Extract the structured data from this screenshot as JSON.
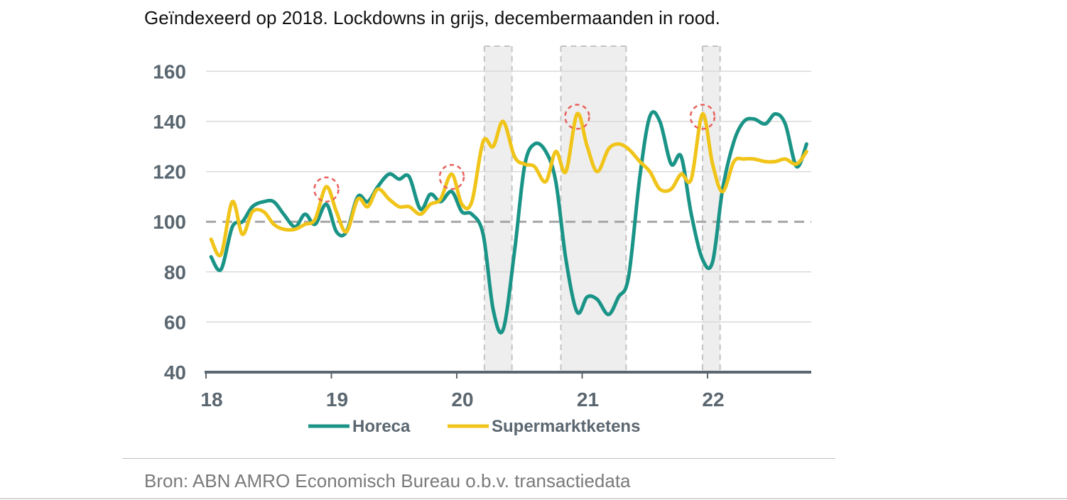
{
  "subtitle": "Geïndexeerd op 2018. Lockdowns in grijs, decembermaanden in rood.",
  "source": "Bron: ABN AMRO Economisch Bureau o.b.v. transactiedata",
  "colors": {
    "horeca": "#1a9487",
    "supermarkt": "#f0c419",
    "lockdown": "#eeeeee",
    "december_marker": "#e8605c",
    "baseline": "#a6a6a6",
    "axis": "#5b6770"
  },
  "chart_data": {
    "type": "line",
    "title": "",
    "xlabel": "",
    "ylabel": "",
    "xlim": [
      2018.0,
      2022.85
    ],
    "ylim": [
      40,
      170
    ],
    "y_ticks": [
      40,
      60,
      80,
      100,
      120,
      140,
      160
    ],
    "x_ticks": [
      {
        "value": 2018,
        "label": "18"
      },
      {
        "value": 2019,
        "label": "19"
      },
      {
        "value": 2020,
        "label": "20"
      },
      {
        "value": 2021,
        "label": "21"
      },
      {
        "value": 2022,
        "label": "22"
      }
    ],
    "grid": "horizontal",
    "reference_line": {
      "y": 100,
      "style": "dashed"
    },
    "legend_position": "bottom",
    "lockdowns": [
      {
        "start": 2020.22,
        "end": 2020.44
      },
      {
        "start": 2020.83,
        "end": 2021.35
      },
      {
        "start": 2021.96,
        "end": 2022.1
      }
    ],
    "december_markers": [
      {
        "x": 2018.96,
        "y": 114
      },
      {
        "x": 2019.96,
        "y": 119
      },
      {
        "x": 2020.96,
        "y": 143
      },
      {
        "x": 2021.96,
        "y": 143
      }
    ],
    "series": [
      {
        "name": "Horeca",
        "color_key": "horeca",
        "points": [
          [
            2018.04,
            86
          ],
          [
            2018.12,
            81
          ],
          [
            2018.21,
            98
          ],
          [
            2018.29,
            100
          ],
          [
            2018.37,
            106
          ],
          [
            2018.46,
            108
          ],
          [
            2018.54,
            108
          ],
          [
            2018.62,
            103
          ],
          [
            2018.71,
            98
          ],
          [
            2018.79,
            103
          ],
          [
            2018.87,
            99
          ],
          [
            2018.96,
            107
          ],
          [
            2019.04,
            96
          ],
          [
            2019.12,
            96
          ],
          [
            2019.21,
            110
          ],
          [
            2019.29,
            108
          ],
          [
            2019.37,
            114
          ],
          [
            2019.46,
            119
          ],
          [
            2019.54,
            117
          ],
          [
            2019.62,
            118
          ],
          [
            2019.71,
            105
          ],
          [
            2019.79,
            111
          ],
          [
            2019.87,
            108
          ],
          [
            2019.96,
            112
          ],
          [
            2020.04,
            104
          ],
          [
            2020.12,
            103
          ],
          [
            2020.21,
            95
          ],
          [
            2020.29,
            65
          ],
          [
            2020.37,
            57
          ],
          [
            2020.46,
            88
          ],
          [
            2020.54,
            122
          ],
          [
            2020.62,
            131
          ],
          [
            2020.71,
            128
          ],
          [
            2020.79,
            116
          ],
          [
            2020.87,
            85
          ],
          [
            2020.96,
            64
          ],
          [
            2021.04,
            70
          ],
          [
            2021.12,
            69
          ],
          [
            2021.21,
            63
          ],
          [
            2021.29,
            70
          ],
          [
            2021.37,
            78
          ],
          [
            2021.46,
            118
          ],
          [
            2021.54,
            142
          ],
          [
            2021.62,
            140
          ],
          [
            2021.71,
            123
          ],
          [
            2021.79,
            126
          ],
          [
            2021.87,
            103
          ],
          [
            2021.96,
            85
          ],
          [
            2022.04,
            84
          ],
          [
            2022.12,
            113
          ],
          [
            2022.21,
            132
          ],
          [
            2022.29,
            140
          ],
          [
            2022.37,
            141
          ],
          [
            2022.46,
            139
          ],
          [
            2022.54,
            143
          ],
          [
            2022.62,
            139
          ],
          [
            2022.71,
            122
          ],
          [
            2022.79,
            131
          ]
        ]
      },
      {
        "name": "Supermarktketens",
        "color_key": "supermarkt",
        "points": [
          [
            2018.04,
            93
          ],
          [
            2018.12,
            87
          ],
          [
            2018.21,
            108
          ],
          [
            2018.29,
            95
          ],
          [
            2018.37,
            104
          ],
          [
            2018.46,
            104
          ],
          [
            2018.54,
            99
          ],
          [
            2018.62,
            97
          ],
          [
            2018.71,
            97
          ],
          [
            2018.79,
            99
          ],
          [
            2018.87,
            101
          ],
          [
            2018.96,
            114
          ],
          [
            2019.04,
            104
          ],
          [
            2019.12,
            96
          ],
          [
            2019.21,
            109
          ],
          [
            2019.29,
            106
          ],
          [
            2019.37,
            113
          ],
          [
            2019.46,
            109
          ],
          [
            2019.54,
            106
          ],
          [
            2019.62,
            106
          ],
          [
            2019.71,
            103
          ],
          [
            2019.79,
            107
          ],
          [
            2019.87,
            109
          ],
          [
            2019.96,
            119
          ],
          [
            2020.04,
            107
          ],
          [
            2020.12,
            108
          ],
          [
            2020.21,
            132
          ],
          [
            2020.29,
            130
          ],
          [
            2020.37,
            140
          ],
          [
            2020.46,
            126
          ],
          [
            2020.54,
            123
          ],
          [
            2020.62,
            122
          ],
          [
            2020.71,
            116
          ],
          [
            2020.79,
            128
          ],
          [
            2020.87,
            120
          ],
          [
            2020.96,
            143
          ],
          [
            2021.04,
            130
          ],
          [
            2021.12,
            120
          ],
          [
            2021.21,
            129
          ],
          [
            2021.29,
            131
          ],
          [
            2021.37,
            129
          ],
          [
            2021.46,
            124
          ],
          [
            2021.54,
            120
          ],
          [
            2021.62,
            113
          ],
          [
            2021.71,
            113
          ],
          [
            2021.79,
            119
          ],
          [
            2021.87,
            117
          ],
          [
            2021.96,
            143
          ],
          [
            2022.04,
            123
          ],
          [
            2022.12,
            112
          ],
          [
            2022.21,
            124
          ],
          [
            2022.29,
            125
          ],
          [
            2022.37,
            125
          ],
          [
            2022.46,
            124
          ],
          [
            2022.54,
            124
          ],
          [
            2022.62,
            125
          ],
          [
            2022.71,
            123
          ],
          [
            2022.79,
            128
          ]
        ]
      }
    ]
  }
}
